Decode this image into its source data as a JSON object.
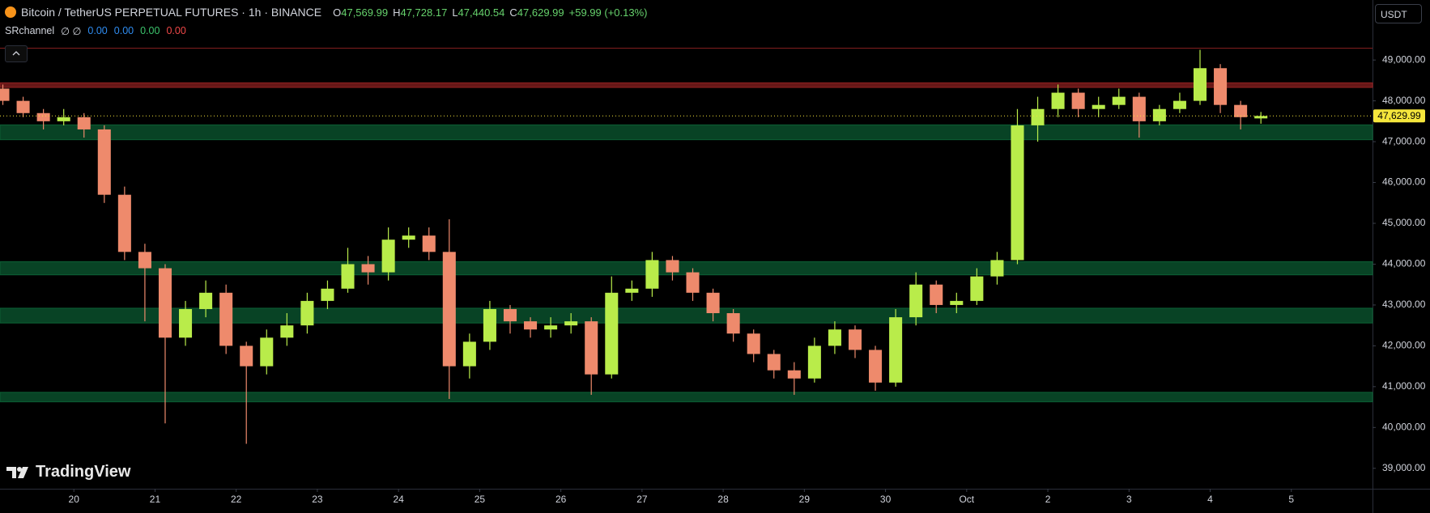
{
  "header": {
    "symbol": "Bitcoin / TetherUS PERPETUAL FUTURES · 1h · BINANCE",
    "ohlc": [
      {
        "label": "O",
        "value": "47,569.99"
      },
      {
        "label": "H",
        "value": "47,728.17"
      },
      {
        "label": "L",
        "value": "47,440.54"
      },
      {
        "label": "C",
        "value": "47,629.99"
      }
    ],
    "change": "+59.99 (+0.13%)",
    "indicator": {
      "name": "SRchannel",
      "flags": "∅ ∅",
      "values": [
        "0.00",
        "0.00",
        "0.00",
        "0.00"
      ]
    },
    "currency": "USDT",
    "brand": "TradingView"
  },
  "chart_data": {
    "type": "candlestick",
    "up_color": "#b9ec4a",
    "down_color": "#ee8a6c",
    "xlim": [
      -0.14,
      67.5
    ],
    "xticks": [
      {
        "value": 3.5,
        "label": "20"
      },
      {
        "value": 7.5,
        "label": "21"
      },
      {
        "value": 11.5,
        "label": "22"
      },
      {
        "value": 15.5,
        "label": "23"
      },
      {
        "value": 19.5,
        "label": "24"
      },
      {
        "value": 23.5,
        "label": "25"
      },
      {
        "value": 27.5,
        "label": "26"
      },
      {
        "value": 31.5,
        "label": "27"
      },
      {
        "value": 35.5,
        "label": "28"
      },
      {
        "value": 39.5,
        "label": "29"
      },
      {
        "value": 43.5,
        "label": "30"
      },
      {
        "value": 47.5,
        "label": "Oct"
      },
      {
        "value": 51.5,
        "label": "2"
      },
      {
        "value": 55.5,
        "label": "3"
      },
      {
        "value": 59.5,
        "label": "4"
      },
      {
        "value": 63.5,
        "label": "5"
      }
    ],
    "ylim": [
      38500,
      50470
    ],
    "yticks": [
      {
        "value": 39000,
        "label": "39,000.00"
      },
      {
        "value": 40000,
        "label": "40,000.00"
      },
      {
        "value": 41000,
        "label": "41,000.00"
      },
      {
        "value": 42000,
        "label": "42,000.00"
      },
      {
        "value": 43000,
        "label": "43,000.00"
      },
      {
        "value": 44000,
        "label": "44,000.00"
      },
      {
        "value": 45000,
        "label": "45,000.00"
      },
      {
        "value": 46000,
        "label": "46,000.00"
      },
      {
        "value": 47000,
        "label": "47,000.00"
      },
      {
        "value": 48000,
        "label": "48,000.00"
      },
      {
        "value": 49000,
        "label": "49,000.00"
      }
    ],
    "open": [
      48300,
      48000,
      47700,
      47500,
      47600,
      47300,
      45700,
      44300,
      43900,
      42200,
      42900,
      43300,
      42000,
      41500,
      42200,
      42500,
      43100,
      43400,
      44000,
      43800,
      44600,
      44700,
      44300,
      41500,
      42100,
      42900,
      42600,
      42400,
      42500,
      42600,
      41300,
      43300,
      43400,
      44100,
      43800,
      43300,
      42800,
      42300,
      41800,
      41400,
      41200,
      42000,
      42400,
      41900,
      41100,
      42700,
      43500,
      43000,
      43100,
      43700,
      44100,
      47400,
      47800,
      48200,
      47800,
      47900,
      48100,
      47500,
      47800,
      48000,
      48800,
      47900,
      47569.99
    ],
    "high": [
      48400,
      48100,
      47800,
      47800,
      47700,
      47400,
      45900,
      44500,
      44000,
      43100,
      43600,
      43500,
      42100,
      42400,
      42800,
      43300,
      43600,
      44400,
      44200,
      44900,
      44900,
      44900,
      45100,
      42300,
      43100,
      43000,
      42700,
      42700,
      42800,
      42700,
      43700,
      43600,
      44300,
      44200,
      43900,
      43400,
      42900,
      42400,
      41900,
      41600,
      42200,
      42600,
      42500,
      42000,
      42900,
      43800,
      43600,
      43300,
      43900,
      44300,
      47800,
      48100,
      48400,
      48300,
      48100,
      48300,
      48200,
      47900,
      48200,
      49250,
      48900,
      48000,
      47728.17
    ],
    "low": [
      47900,
      47600,
      47300,
      47400,
      47100,
      45500,
      44100,
      42600,
      40100,
      42000,
      42700,
      41800,
      39600,
      41300,
      42000,
      42300,
      42900,
      43300,
      43500,
      43600,
      44400,
      44100,
      40700,
      41200,
      41900,
      42300,
      42200,
      42200,
      42300,
      40800,
      41200,
      43100,
      43200,
      43600,
      43100,
      42600,
      42100,
      41600,
      41200,
      40800,
      41100,
      41800,
      41700,
      40900,
      41000,
      42500,
      42800,
      42800,
      43000,
      43500,
      44000,
      47000,
      47600,
      47600,
      47600,
      47800,
      47100,
      47400,
      47700,
      47900,
      47700,
      47300,
      47440.54
    ],
    "close": [
      48000,
      47700,
      47500,
      47600,
      47300,
      45700,
      44300,
      43900,
      42200,
      42900,
      43300,
      42000,
      41500,
      42200,
      42500,
      43100,
      43400,
      44000,
      43800,
      44600,
      44700,
      44300,
      41500,
      42100,
      42900,
      42600,
      42400,
      42500,
      42600,
      41300,
      43300,
      43400,
      44100,
      43800,
      43300,
      42800,
      42300,
      41800,
      41400,
      41200,
      42000,
      42400,
      41900,
      41100,
      42700,
      43500,
      43000,
      43100,
      43700,
      44100,
      47400,
      47800,
      48200,
      47800,
      47900,
      48100,
      47500,
      47800,
      48000,
      48800,
      47900,
      47600,
      47629.99
    ],
    "zones": [
      {
        "low": 48330,
        "high": 48440,
        "color": "#8a1f1f"
      },
      {
        "low": 47050,
        "high": 47410,
        "color": "#0b5a32"
      },
      {
        "low": 43740,
        "high": 44060,
        "color": "#0b5a32"
      },
      {
        "low": 42560,
        "high": 42920,
        "color": "#0b5a32"
      },
      {
        "low": 40630,
        "high": 40860,
        "color": "#0b5a32"
      }
    ],
    "levels": [
      {
        "value": 49290,
        "color": "#7a1c1c"
      }
    ],
    "last_price": 47629.99,
    "last_price_label": "47,629.99",
    "last_price_color": "#f5e63c"
  }
}
